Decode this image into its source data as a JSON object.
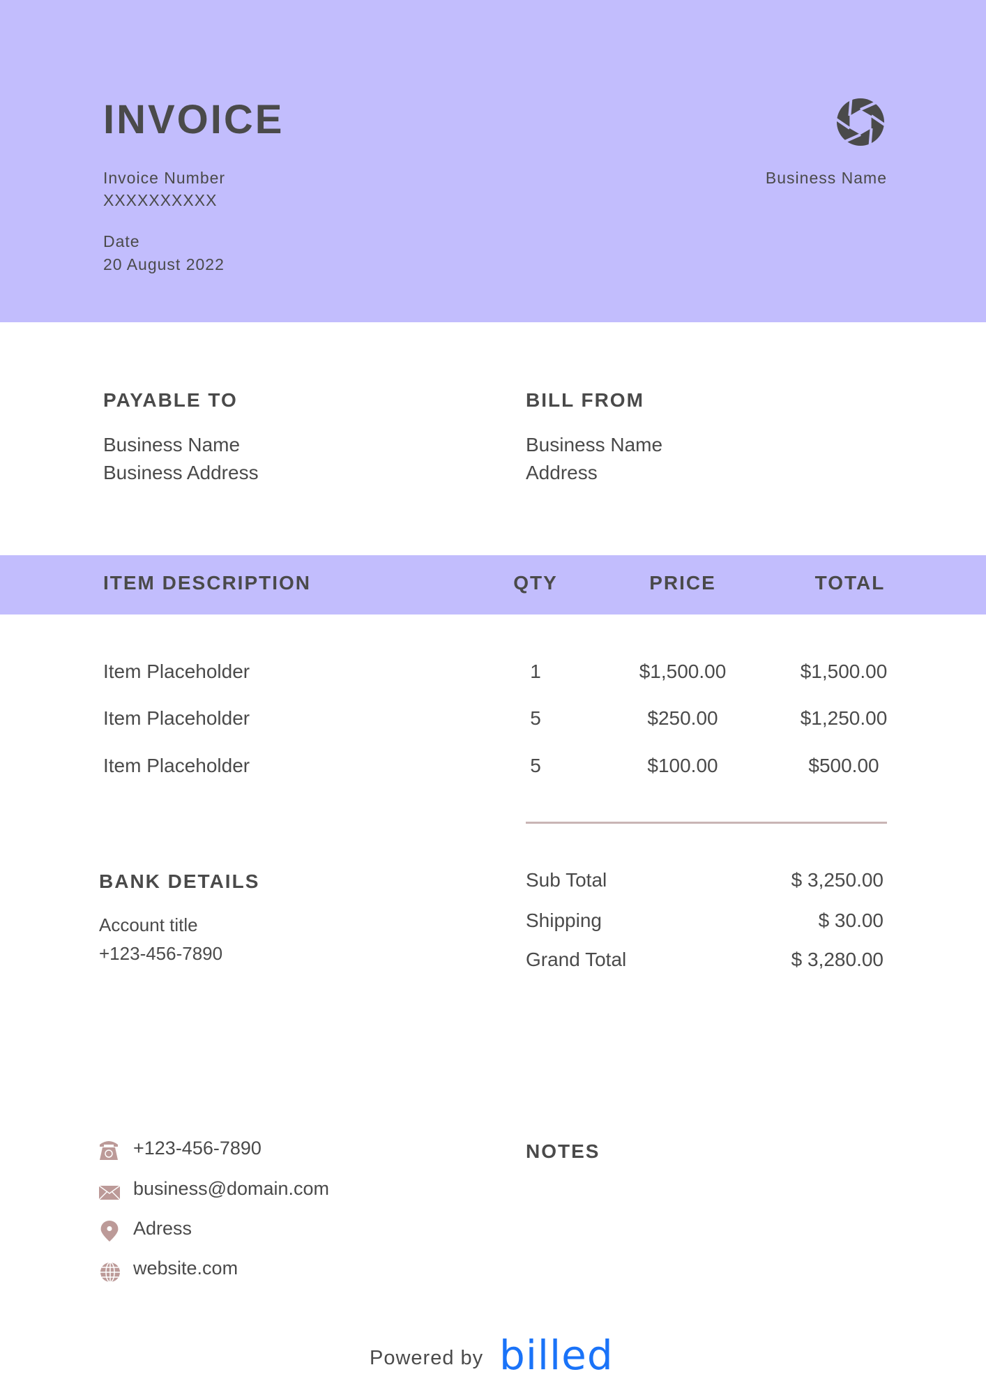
{
  "header": {
    "title": "INVOICE",
    "invoice_number_label": "Invoice Number",
    "invoice_number": "XXXXXXXXXX",
    "date_label": "Date",
    "date": "20 August 2022",
    "business_name": "Business Name",
    "logo_icon": "camera-aperture-icon",
    "background_color": "#c2bdfd"
  },
  "payable_to": {
    "heading": "PAYABLE TO",
    "name": "Business Name",
    "address": "Business Address"
  },
  "bill_from": {
    "heading": "BILL FROM",
    "name": "Business Name",
    "address": "Address"
  },
  "table": {
    "headers": [
      "ITEM DESCRIPTION",
      "QTY",
      "PRICE",
      "TOTAL"
    ],
    "rows": [
      {
        "description": "Item Placeholder",
        "qty": "1",
        "price": "$1,500.00",
        "total": "$1,500.00"
      },
      {
        "description": "Item Placeholder",
        "qty": "5",
        "price": "$250.00",
        "total": "$1,250.00"
      },
      {
        "description": "Item Placeholder",
        "qty": "5",
        "price": "$100.00",
        "total": "$500.00"
      }
    ]
  },
  "bank": {
    "heading": "BANK DETAILS",
    "account_title": "Account title",
    "phone": "+123-456-7890"
  },
  "totals": [
    {
      "label": "Sub Total",
      "value": "$ 3,250.00"
    },
    {
      "label": "Shipping",
      "value": "$ 30.00"
    },
    {
      "label": "Grand Total",
      "value": "$ 3,280.00"
    }
  ],
  "contact": [
    {
      "icon": "phone-icon",
      "text": "+123-456-7890"
    },
    {
      "icon": "envelope-icon",
      "text": "business@domain.com"
    },
    {
      "icon": "map-pin-icon",
      "text": "Adress"
    },
    {
      "icon": "globe-icon",
      "text": "website.com"
    }
  ],
  "notes": {
    "heading": "NOTES"
  },
  "footer": {
    "powered_by": "Powered by",
    "brand": "billed",
    "brand_color": "#1a73f8"
  }
}
